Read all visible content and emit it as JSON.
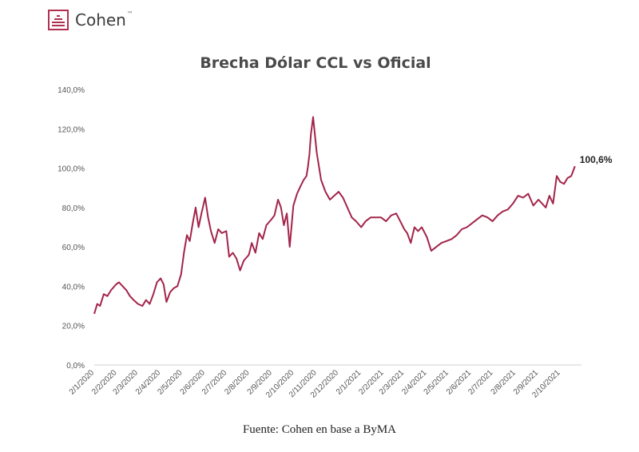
{
  "brand": {
    "name": "Cohen",
    "tm": "™",
    "color": "#b0304f"
  },
  "chart_data": {
    "type": "line",
    "title": "Brecha Dólar CCL vs Oficial",
    "xlabel": "",
    "ylabel": "",
    "ylim": [
      0,
      140
    ],
    "yticks": [
      0,
      20,
      40,
      60,
      80,
      100,
      120,
      140
    ],
    "ytick_labels": [
      "0,0%",
      "20,0%",
      "40,0%",
      "60,0%",
      "80,0%",
      "100,0%",
      "120,0%",
      "140,0%"
    ],
    "xlim": [
      "2020-01-02",
      "2021-10-31"
    ],
    "xtick_dates": [
      "2020-01-02",
      "2020-02-02",
      "2020-03-02",
      "2020-04-02",
      "2020-05-02",
      "2020-06-02",
      "2020-07-02",
      "2020-08-02",
      "2020-09-02",
      "2020-10-02",
      "2020-11-02",
      "2020-12-02",
      "2021-01-02",
      "2021-02-02",
      "2021-03-02",
      "2021-04-02",
      "2021-05-02",
      "2021-06-02",
      "2021-07-02",
      "2021-08-02",
      "2021-09-02",
      "2021-10-02"
    ],
    "xtick_labels": [
      "2/1/2020",
      "2/2/2020",
      "2/3/2020",
      "2/4/2020",
      "2/5/2020",
      "2/6/2020",
      "2/7/2020",
      "2/8/2020",
      "2/9/2020",
      "2/10/2020",
      "2/11/2020",
      "2/12/2020",
      "2/1/2021",
      "2/2/2021",
      "2/3/2021",
      "2/4/2021",
      "2/5/2021",
      "2/6/2021",
      "2/7/2021",
      "2/8/2021",
      "2/9/2021",
      "2/10/2021"
    ],
    "grid": false,
    "line_color": "#a3244a",
    "series": [
      {
        "x": [
          "2020-01-02",
          "2020-01-06",
          "2020-01-10",
          "2020-01-15",
          "2020-01-20",
          "2020-01-25",
          "2020-02-01",
          "2020-02-05",
          "2020-02-10",
          "2020-02-15",
          "2020-02-20",
          "2020-02-25",
          "2020-03-02",
          "2020-03-08",
          "2020-03-13",
          "2020-03-18",
          "2020-03-23",
          "2020-03-28",
          "2020-04-02",
          "2020-04-06",
          "2020-04-10",
          "2020-04-15",
          "2020-04-20",
          "2020-04-25",
          "2020-04-30",
          "2020-05-04",
          "2020-05-08",
          "2020-05-12",
          "2020-05-16",
          "2020-05-20",
          "2020-05-24",
          "2020-05-28",
          "2020-06-02",
          "2020-06-06",
          "2020-06-10",
          "2020-06-15",
          "2020-06-20",
          "2020-06-25",
          "2020-07-01",
          "2020-07-05",
          "2020-07-10",
          "2020-07-15",
          "2020-07-20",
          "2020-07-25",
          "2020-08-01",
          "2020-08-05",
          "2020-08-10",
          "2020-08-15",
          "2020-08-20",
          "2020-08-25",
          "2020-09-01",
          "2020-09-05",
          "2020-09-10",
          "2020-09-14",
          "2020-09-18",
          "2020-09-22",
          "2020-09-26",
          "2020-10-01",
          "2020-10-06",
          "2020-10-11",
          "2020-10-15",
          "2020-10-19",
          "2020-10-21",
          "2020-10-23",
          "2020-10-25",
          "2020-10-28",
          "2020-11-02",
          "2020-11-08",
          "2020-11-14",
          "2020-11-20",
          "2020-11-26",
          "2020-12-02",
          "2020-12-08",
          "2020-12-14",
          "2020-12-20",
          "2020-12-26",
          "2021-01-02",
          "2021-01-08",
          "2021-01-15",
          "2021-01-22",
          "2021-01-29",
          "2021-02-05",
          "2021-02-12",
          "2021-02-19",
          "2021-02-26",
          "2021-03-02",
          "2021-03-06",
          "2021-03-11",
          "2021-03-16",
          "2021-03-21",
          "2021-03-26",
          "2021-04-02",
          "2021-04-08",
          "2021-04-15",
          "2021-04-22",
          "2021-04-29",
          "2021-05-06",
          "2021-05-13",
          "2021-05-20",
          "2021-05-27",
          "2021-06-03",
          "2021-06-10",
          "2021-06-17",
          "2021-06-24",
          "2021-07-01",
          "2021-07-08",
          "2021-07-15",
          "2021-07-22",
          "2021-07-29",
          "2021-08-05",
          "2021-08-12",
          "2021-08-19",
          "2021-08-26",
          "2021-09-02",
          "2021-09-07",
          "2021-09-12",
          "2021-09-17",
          "2021-09-22",
          "2021-09-27",
          "2021-10-02",
          "2021-10-07",
          "2021-10-12",
          "2021-10-17",
          "2021-10-22"
        ],
        "y": [
          26,
          31,
          30,
          36,
          35,
          38,
          41,
          42,
          40,
          38,
          35,
          33,
          31,
          30,
          33,
          31,
          36,
          42,
          44,
          41,
          32,
          37,
          39,
          40,
          46,
          57,
          66,
          63,
          72,
          80,
          70,
          77,
          85,
          75,
          68,
          62,
          69,
          67,
          68,
          55,
          57,
          54,
          48,
          53,
          56,
          62,
          57,
          67,
          64,
          71,
          74,
          76,
          84,
          80,
          71,
          77,
          60,
          81,
          87,
          91,
          94,
          96,
          101,
          107,
          117,
          126,
          108,
          94,
          88,
          84,
          86,
          88,
          85,
          80,
          75,
          73,
          70,
          73,
          75,
          75,
          75,
          73,
          76,
          77,
          72,
          69,
          67,
          62,
          70,
          68,
          70,
          65,
          58,
          60,
          62,
          63,
          64,
          66,
          69,
          70,
          72,
          74,
          76,
          75,
          73,
          76,
          78,
          79,
          82,
          86,
          85,
          87,
          81,
          84,
          82,
          80,
          86,
          82,
          96,
          93,
          92,
          95,
          96,
          101
        ]
      }
    ],
    "end_label": "100,6%",
    "source": "Fuente: Cohen en base a ByMA"
  }
}
